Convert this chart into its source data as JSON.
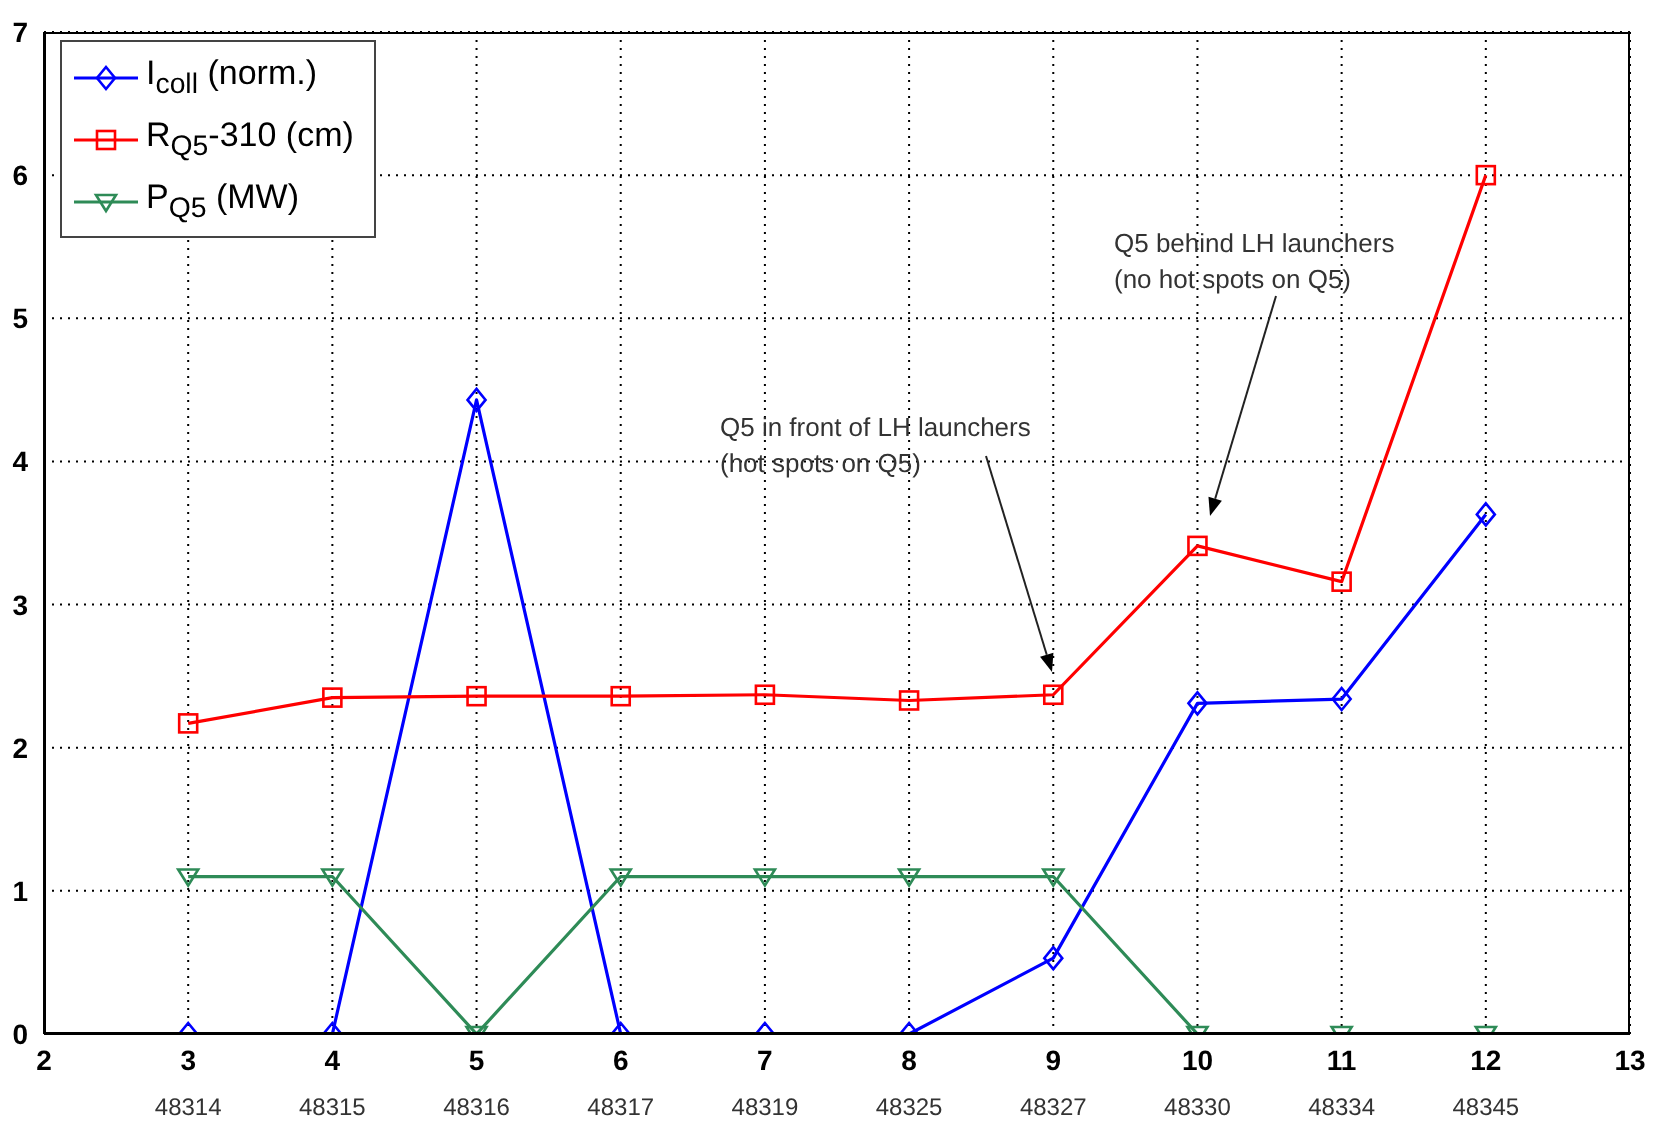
{
  "chart_data": {
    "type": "line",
    "categories": [
      "48314",
      "48315",
      "48316",
      "48317",
      "48319",
      "48325",
      "48327",
      "48330",
      "48334",
      "48345"
    ],
    "series": [
      {
        "name": "I$_{coll}$ (norm.)",
        "color": "#0000ff",
        "marker": "diamond",
        "values": [
          0,
          0,
          4.43,
          0,
          0,
          0,
          0.53,
          2.31,
          2.34,
          3.63
        ]
      },
      {
        "name": "R$_{Q5}$-310 (cm)",
        "color": "#ff0000",
        "marker": "square",
        "values": [
          2.17,
          2.35,
          2.36,
          2.36,
          2.37,
          2.33,
          2.37,
          3.41,
          3.16,
          6.0
        ]
      },
      {
        "name": "P$_{Q5}$ (MW)",
        "color": "#2e8b57",
        "marker": "triangle",
        "values": [
          1.1,
          1.1,
          0,
          1.1,
          1.1,
          1.1,
          1.1,
          0,
          0,
          0
        ]
      }
    ],
    "x2lim": [
      2,
      13
    ],
    "x2ticks": [
      2,
      3,
      4,
      5,
      6,
      7,
      8,
      9,
      10,
      11,
      12,
      13
    ],
    "ylim": [
      0,
      7
    ],
    "yticks": [
      0,
      1,
      2,
      3,
      4,
      5,
      6,
      7
    ],
    "grid": true,
    "legend": "top left",
    "line_style": "solid",
    "annotations": [
      "Q5 in front of LH launchers\n(hot spots on Q5)",
      "Q5 behind LH launchers\n(no hot spots on Q5)"
    ]
  }
}
